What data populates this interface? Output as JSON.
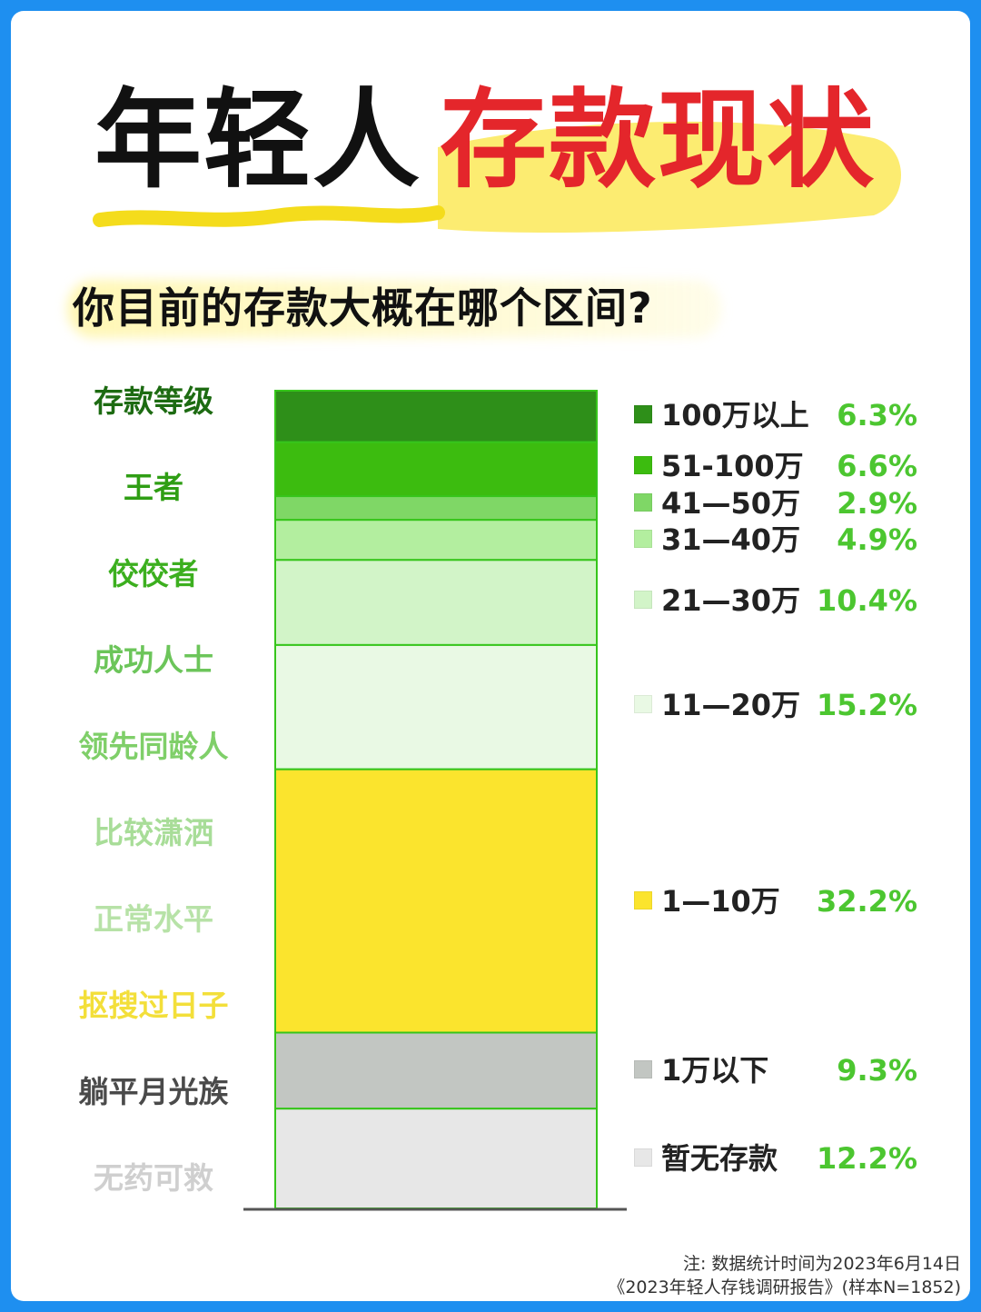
{
  "title": {
    "part1": "年轻人",
    "part2": "存款现状"
  },
  "subtitle": "你目前的存款大概在哪个区间?",
  "levels": {
    "header": "存款等级",
    "items": [
      {
        "label": "王者",
        "color": "#2f9e14"
      },
      {
        "label": "佼佼者",
        "color": "#3caf1f"
      },
      {
        "label": "成功人士",
        "color": "#6cc55a"
      },
      {
        "label": "领先同龄人",
        "color": "#7fcf69"
      },
      {
        "label": "比较潇洒",
        "color": "#a8dd98"
      },
      {
        "label": "正常水平",
        "color": "#b7e2a7"
      },
      {
        "label": "抠搜过日子",
        "color": "#f3df3a"
      },
      {
        "label": "躺平月光族",
        "color": "#4a4a4a"
      },
      {
        "label": "无药可救",
        "color": "#cfcfcf"
      }
    ]
  },
  "chart_data": {
    "type": "bar",
    "stacked": true,
    "categories": [
      "100万以上",
      "51-100万",
      "41—50万",
      "31—40万",
      "21—30万",
      "11—20万",
      "1—10万",
      "1万以下",
      "暂无存款"
    ],
    "values": [
      6.3,
      6.6,
      2.9,
      4.9,
      10.4,
      15.2,
      32.2,
      9.3,
      12.2
    ],
    "labels": [
      "6.3%",
      "6.6%",
      "2.9%",
      "4.9%",
      "10.4%",
      "15.2%",
      "32.2%",
      "9.3%",
      "12.2%"
    ],
    "colors": [
      "#2e8f19",
      "#3cbc0f",
      "#7fd766",
      "#b3ee9f",
      "#d2f4c8",
      "#e9f9e4",
      "#fbe42d",
      "#c2c6c2",
      "#e7e7e7"
    ],
    "edge_color": "#36c51b",
    "legend": "right",
    "unit": "%"
  },
  "footnote": {
    "line1": "注: 数据统计时间为2023年6月14日",
    "line2": "《2023年轻人存钱调研报告》(样本N=1852)"
  }
}
